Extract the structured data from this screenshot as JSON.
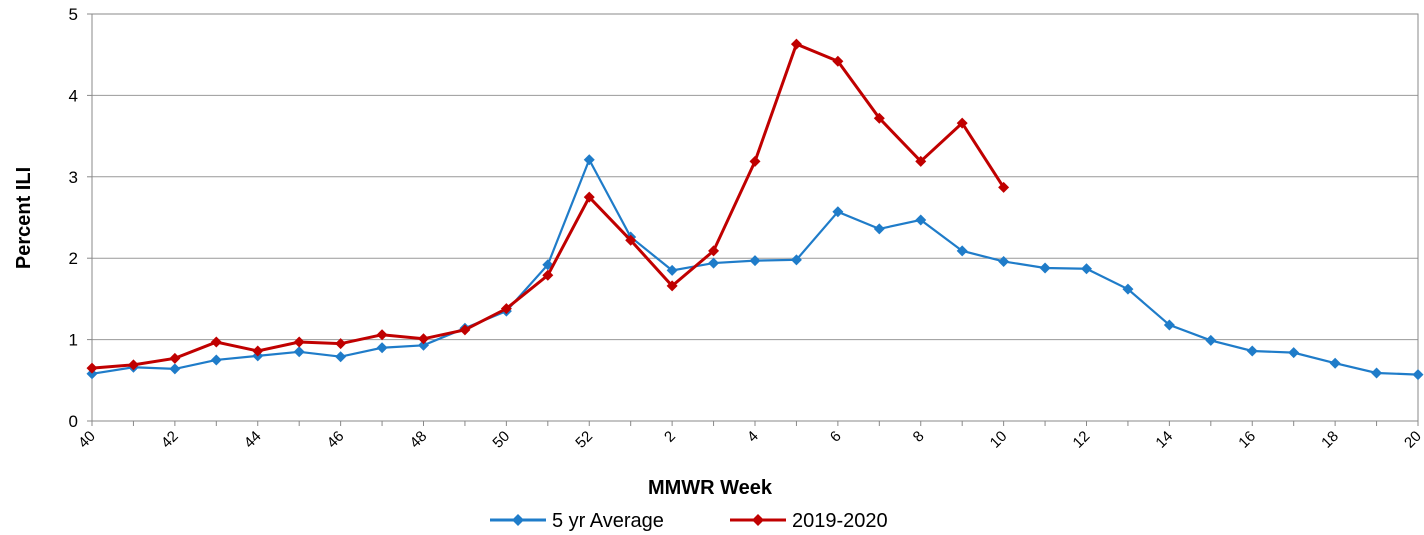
{
  "chart_data": {
    "type": "line",
    "xlabel": "MMWR Week",
    "ylabel": "Percent ILI",
    "categories": [
      "40",
      null,
      "42",
      null,
      "44",
      null,
      "46",
      null,
      "48",
      null,
      "50",
      null,
      "52",
      null,
      "2",
      null,
      "4",
      null,
      "6",
      null,
      "8",
      null,
      "10",
      null,
      "12",
      null,
      "14",
      null,
      "16",
      null,
      "18",
      null,
      "20"
    ],
    "series": [
      {
        "name": "5 yr Average",
        "color": "#1f7cc9",
        "values": [
          0.58,
          0.66,
          0.64,
          0.75,
          0.8,
          0.85,
          0.79,
          0.9,
          0.93,
          1.14,
          1.35,
          1.92,
          3.21,
          2.26,
          1.85,
          1.94,
          1.97,
          1.98,
          2.57,
          2.36,
          2.47,
          2.09,
          1.96,
          1.88,
          1.87,
          1.62,
          1.18,
          0.99,
          0.86,
          0.84,
          0.71,
          0.59,
          0.57
        ]
      },
      {
        "name": "2019-2020",
        "color": "#c00000",
        "values": [
          0.65,
          0.69,
          0.77,
          0.97,
          0.86,
          0.97,
          0.95,
          1.06,
          1.01,
          1.12,
          1.38,
          1.79,
          2.75,
          2.22,
          1.66,
          2.09,
          3.19,
          4.63,
          4.42,
          3.72,
          3.19,
          3.66,
          2.87,
          null,
          null,
          null,
          null,
          null,
          null,
          null,
          null,
          null,
          null
        ]
      }
    ],
    "ylim": [
      0,
      5
    ],
    "yticks": [
      0,
      1,
      2,
      3,
      4,
      5
    ],
    "grid": true,
    "legend": "bottom"
  }
}
